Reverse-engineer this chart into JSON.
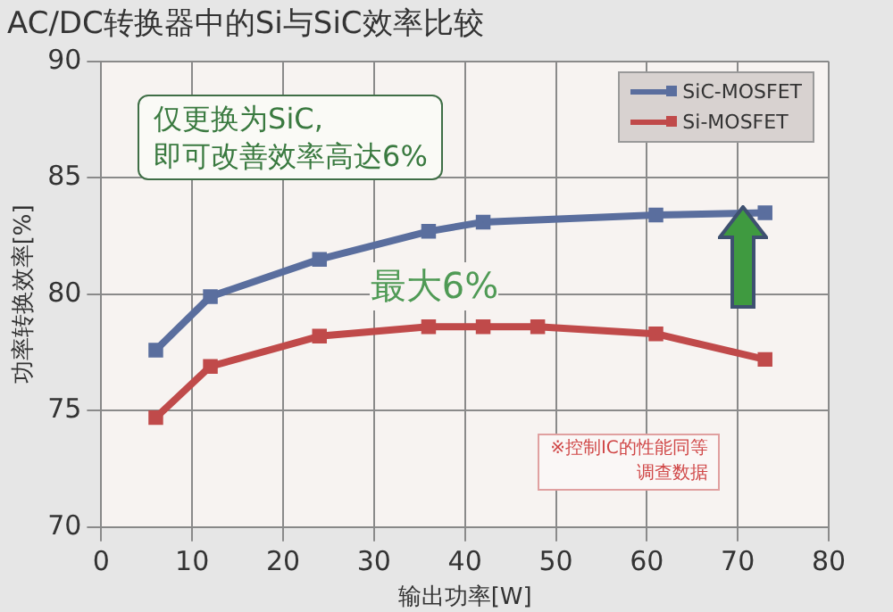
{
  "chart_data": {
    "type": "line",
    "title": "AC/DC转换器中的Si与SiC效率比较",
    "xlabel": "输出功率[W]",
    "ylabel": "功率转换效率[%]",
    "xlim": [
      0,
      80
    ],
    "xticks": [
      0,
      10,
      20,
      30,
      40,
      50,
      60,
      70,
      80
    ],
    "ylim": [
      70,
      90
    ],
    "yticks": [
      70,
      75,
      80,
      85,
      90
    ],
    "grid": true,
    "legend": "top right",
    "marker": "square",
    "line_style": "solid",
    "series": [
      {
        "name": "SiC-MOSFET",
        "color": "#5a6e9e",
        "x": [
          6,
          12,
          24,
          36,
          42,
          61,
          73
        ],
        "values": [
          77.6,
          79.9,
          81.5,
          82.7,
          83.1,
          83.4,
          83.5
        ]
      },
      {
        "name": "Si-MOSFET",
        "color": "#c04a4a",
        "x": [
          6,
          12,
          24,
          36,
          42,
          48,
          61,
          73
        ],
        "values": [
          74.7,
          76.9,
          78.2,
          78.6,
          78.6,
          78.6,
          78.3,
          77.2
        ]
      }
    ],
    "annotations": [
      "仅更换为SiC,\n即可改善效率高达6%",
      "最大6%",
      "※控制IC的性能同等",
      "调查数据"
    ]
  }
}
